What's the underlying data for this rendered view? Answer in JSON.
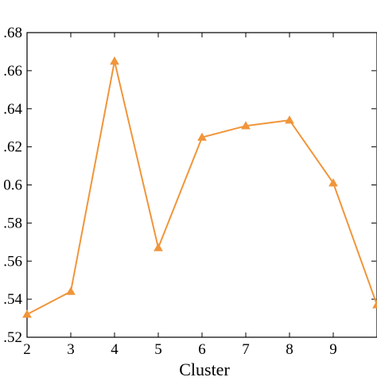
{
  "chart_data": {
    "type": "line",
    "xlabel": "Cluster",
    "ylabel": "",
    "xlim": [
      2,
      10
    ],
    "ylim": [
      0.52,
      0.68
    ],
    "x_ticks": [
      2,
      3,
      4,
      5,
      6,
      7,
      8,
      9
    ],
    "x_tick_labels": [
      "2",
      "3",
      "4",
      "5",
      "6",
      "7",
      "8",
      "9"
    ],
    "y_ticks": [
      0.52,
      0.54,
      0.56,
      0.58,
      0.6,
      0.62,
      0.64,
      0.66,
      0.68
    ],
    "y_tick_labels": [
      ".52",
      ".54",
      ".56",
      ".58",
      "0.6",
      ".62",
      ".64",
      ".66",
      ".68"
    ],
    "grid": false,
    "series": [
      {
        "marker": "triangle",
        "color": "#F0953A",
        "x": [
          2,
          3,
          4,
          5,
          6,
          7,
          8,
          9,
          10
        ],
        "values": [
          0.532,
          0.544,
          0.665,
          0.567,
          0.625,
          0.631,
          0.634,
          0.601,
          0.537
        ]
      }
    ]
  }
}
